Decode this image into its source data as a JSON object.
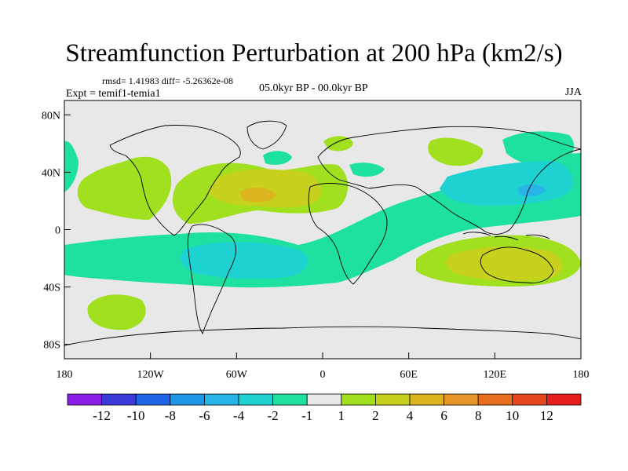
{
  "title": "Streamfunction Perturbation at 200 hPa (km2/s)",
  "stats": "rmsd= 1.41983 diff= -5.26362e-08",
  "expt": "Expt = temif1-temia1",
  "period": "05.0kyr BP - 00.0kyr BP",
  "season": "JJA",
  "map": {
    "lat_labels": [
      "80N",
      "40N",
      "0",
      "40S",
      "80S"
    ],
    "lat_values": [
      80,
      40,
      0,
      -40,
      -80
    ],
    "lon_labels": [
      "180",
      "120W",
      "60W",
      "0",
      "60E",
      "120E",
      "180"
    ],
    "lon_values": [
      -180,
      -120,
      -60,
      0,
      60,
      120,
      180
    ],
    "lat_range": [
      -90,
      90
    ],
    "lon_range": [
      -180,
      180
    ]
  },
  "colorbar": {
    "labels": [
      "-12",
      "-10",
      "-8",
      "-6",
      "-4",
      "-2",
      "-1",
      "1",
      "2",
      "4",
      "6",
      "8",
      "10",
      "12"
    ],
    "colors": [
      "#8a1ee6",
      "#3a3ad8",
      "#1e64e6",
      "#1e96e6",
      "#28b4e6",
      "#1ed2d2",
      "#1ee0a0",
      "#e8e8e8",
      "#a0e01e",
      "#c8d21e",
      "#dcb41e",
      "#e69628",
      "#e66e1e",
      "#e6461e",
      "#e61e1e"
    ]
  },
  "colors": {
    "background_field": "#e8e8e8",
    "coast": "#000000"
  }
}
